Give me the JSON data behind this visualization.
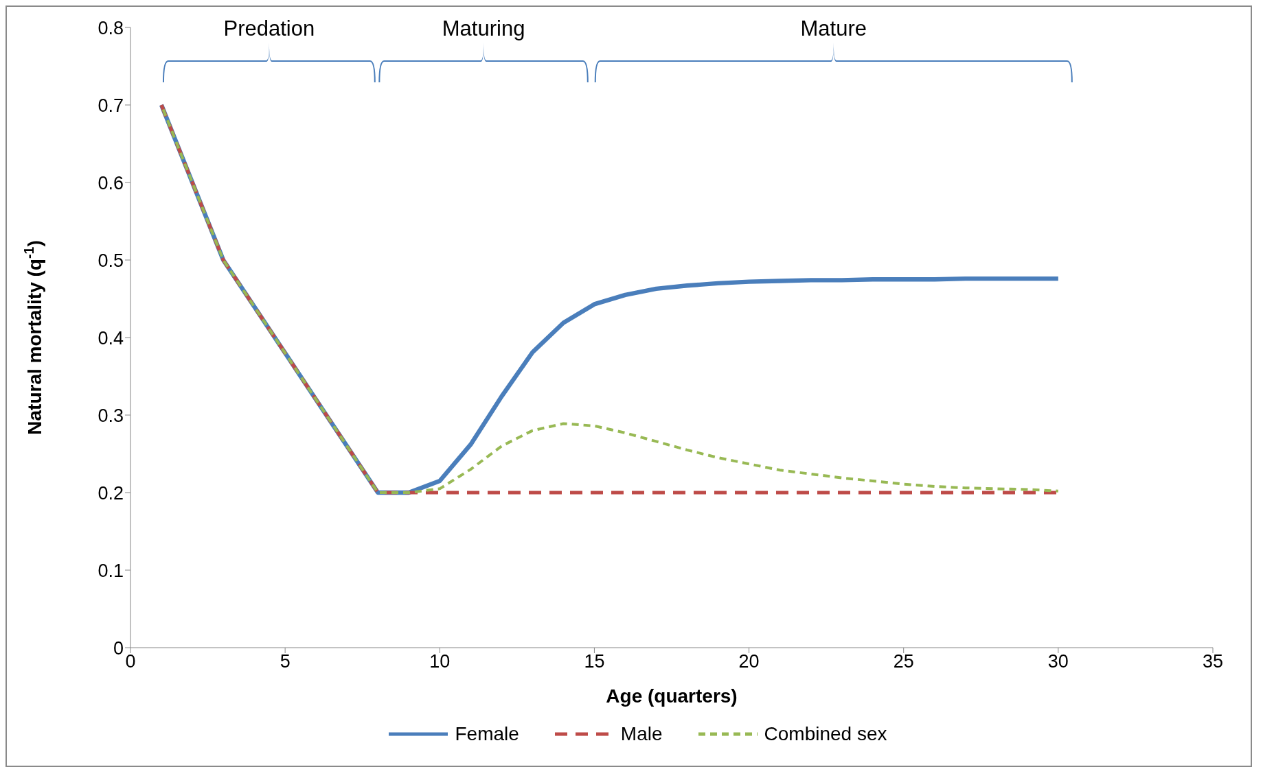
{
  "chart_data": {
    "type": "line",
    "xlabel": "Age (quarters)",
    "ylabel": "Natural mortality (q$^{-1}$)",
    "x": [
      1,
      2,
      3,
      4,
      5,
      6,
      7,
      8,
      9,
      10,
      11,
      12,
      13,
      14,
      15,
      16,
      17,
      18,
      19,
      20,
      21,
      22,
      23,
      24,
      25,
      26,
      27,
      28,
      29,
      30
    ],
    "series": [
      {
        "name": "Female",
        "color": "#4a7ebb",
        "line_style": "solid",
        "values": [
          0.7,
          0.6,
          0.5,
          0.44,
          0.38,
          0.32,
          0.26,
          0.2,
          0.2,
          0.215,
          0.262,
          0.324,
          0.381,
          0.419,
          0.443,
          0.455,
          0.463,
          0.467,
          0.47,
          0.472,
          0.473,
          0.474,
          0.474,
          0.475,
          0.475,
          0.475,
          0.476,
          0.476,
          0.476,
          0.476
        ]
      },
      {
        "name": "Male",
        "color": "#be4b48",
        "line_style": "dashed",
        "values": [
          0.7,
          0.6,
          0.5,
          0.44,
          0.38,
          0.32,
          0.26,
          0.2,
          0.2,
          0.2,
          0.2,
          0.2,
          0.2,
          0.2,
          0.2,
          0.2,
          0.2,
          0.2,
          0.2,
          0.2,
          0.2,
          0.2,
          0.2,
          0.2,
          0.2,
          0.2,
          0.2,
          0.2,
          0.2,
          0.2
        ]
      },
      {
        "name": "Combined sex",
        "color": "#98b954",
        "line_style": "dotted",
        "values": [
          0.7,
          0.6,
          0.5,
          0.44,
          0.38,
          0.32,
          0.26,
          0.2,
          0.2,
          0.205,
          0.23,
          0.26,
          0.28,
          0.289,
          0.286,
          0.277,
          0.266,
          0.255,
          0.245,
          0.237,
          0.229,
          0.224,
          0.219,
          0.215,
          0.211,
          0.208,
          0.206,
          0.205,
          0.204,
          0.202
        ]
      }
    ],
    "xlim": [
      0,
      35
    ],
    "xticks": [
      0,
      5,
      10,
      15,
      20,
      25,
      30,
      35
    ],
    "ylim": [
      0,
      0.8
    ],
    "yticks": [
      0,
      0.1,
      0.2,
      0.3,
      0.4,
      0.5,
      0.6,
      0.7,
      0.8
    ],
    "annotations": [
      "Predation",
      "Maturing",
      "Mature"
    ],
    "grid": false,
    "legend": "bottom",
    "marker": "none"
  }
}
